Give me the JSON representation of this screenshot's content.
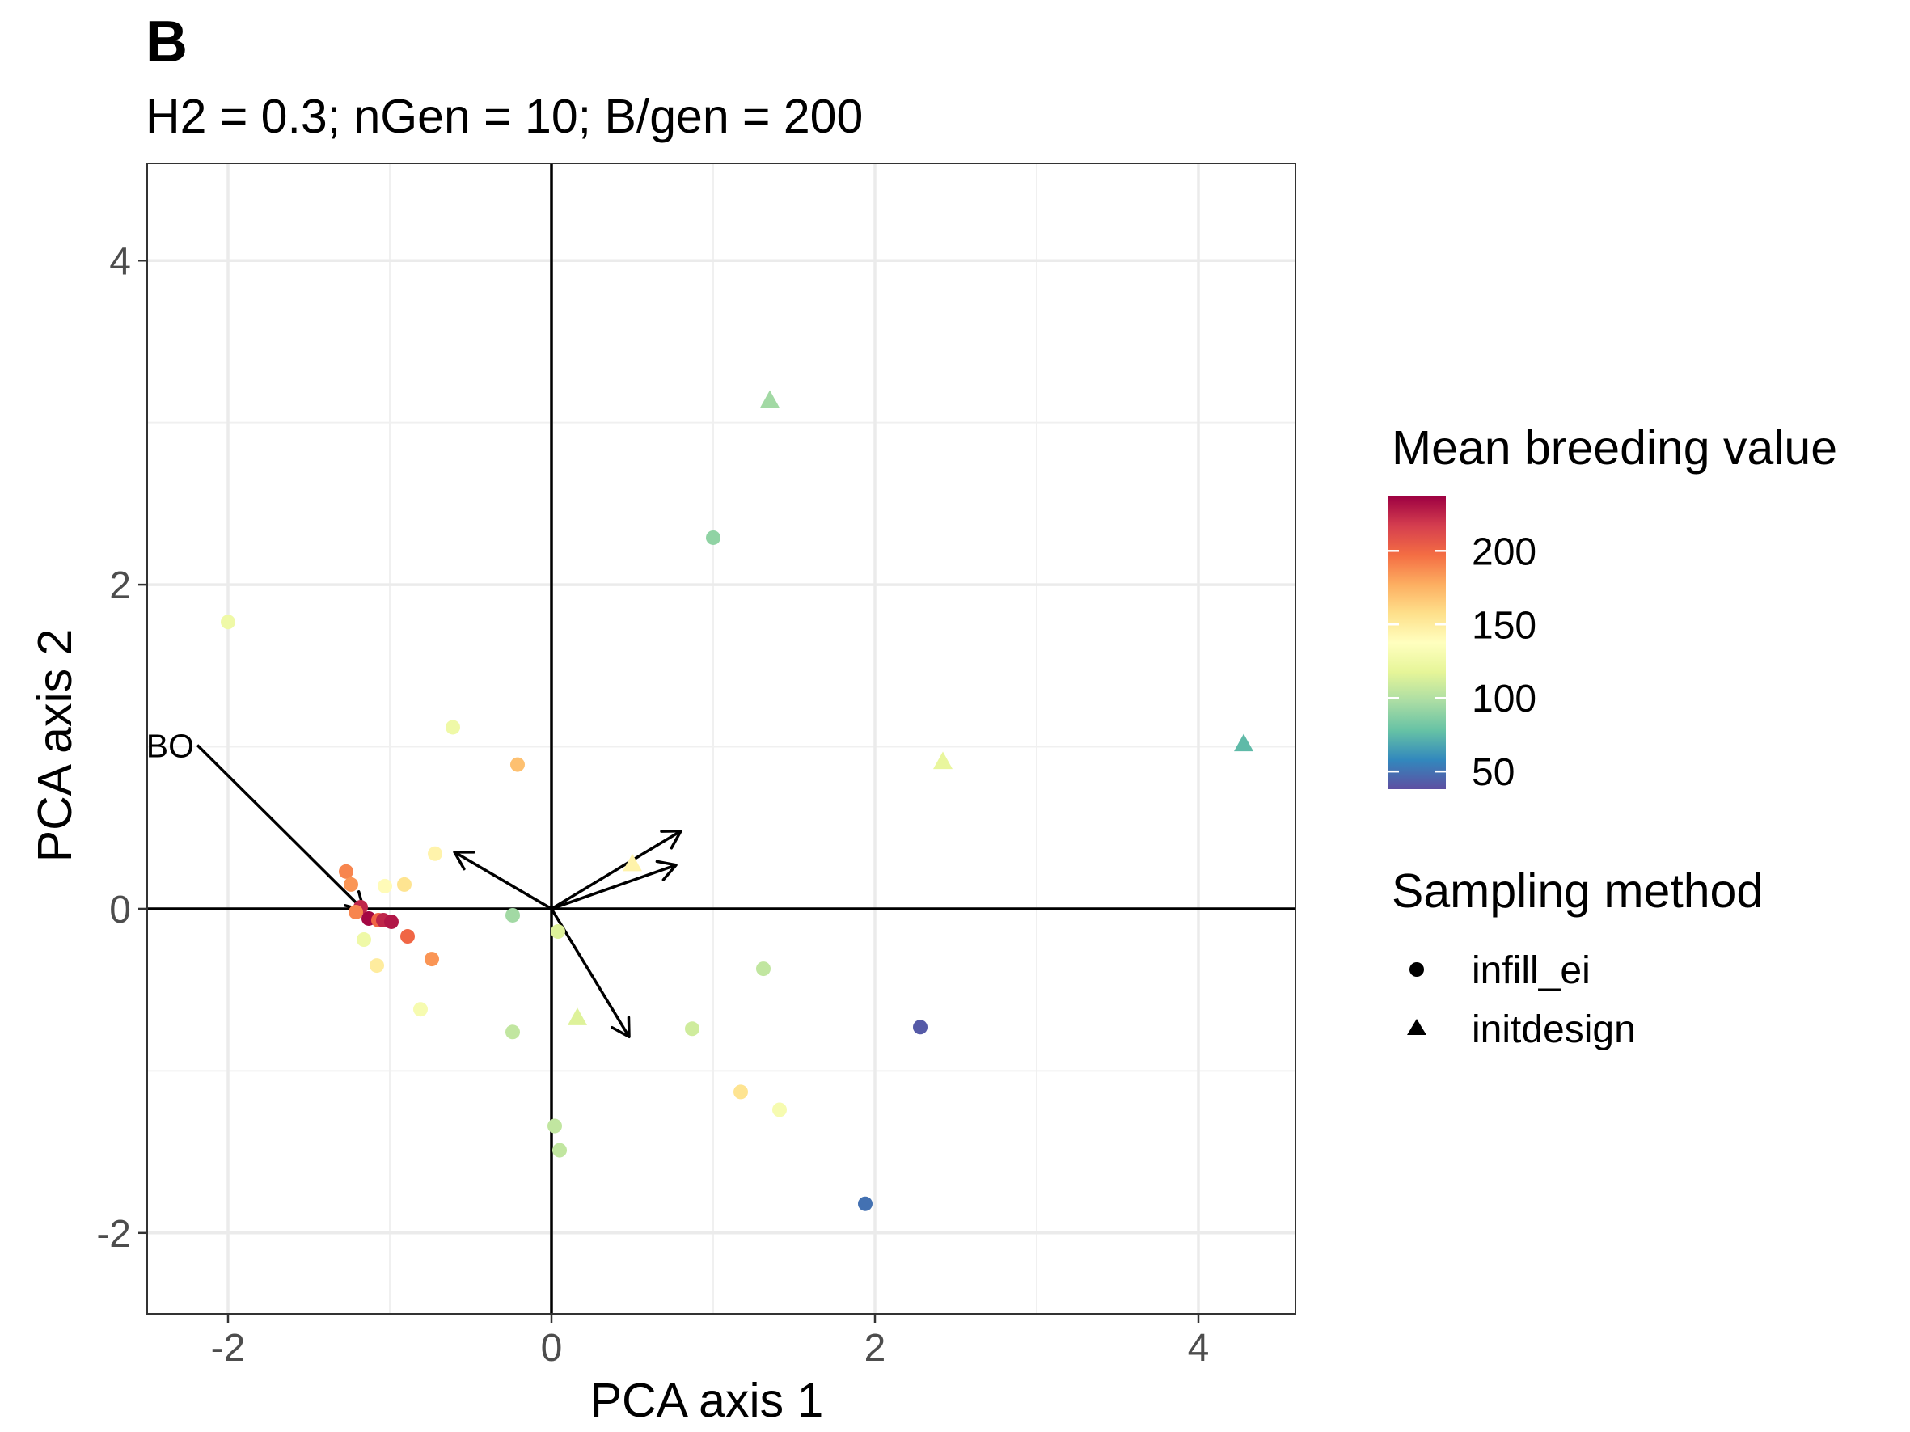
{
  "panel_tag": "B",
  "chart_data": {
    "type": "scatter",
    "title": "",
    "subtitle": "H2 = 0.3; nGen = 10; B/gen = 200",
    "xlabel": "PCA axis 1",
    "ylabel": "PCA axis 2",
    "xlim": [
      -2.5,
      4.6
    ],
    "ylim": [
      -2.5,
      4.6
    ],
    "x_ticks": [
      -2,
      0,
      2,
      4
    ],
    "y_ticks": [
      -2,
      0,
      2,
      4
    ],
    "x_tick_labels": [
      "-2",
      "0",
      "2",
      "4"
    ],
    "y_tick_labels": [
      "-2",
      "0",
      "2",
      "4"
    ],
    "grid": true,
    "zero_lines": true,
    "color_scale": {
      "title": "Mean breeding value",
      "palette": "Spectral",
      "min": 38,
      "max": 237,
      "ticks": [
        50,
        100,
        150,
        200
      ],
      "tick_labels": [
        "50",
        "100",
        "150",
        "200"
      ],
      "stops": [
        "#5E4FA2",
        "#3288BD",
        "#66C2A5",
        "#ABDDA4",
        "#E6F598",
        "#FFFFBF",
        "#FEE08B",
        "#FDAE61",
        "#F46D43",
        "#D53E4F",
        "#9E0142"
      ]
    },
    "shape_legend": {
      "title": "Sampling method",
      "items": [
        {
          "label": "infill_ei",
          "shape": "circle"
        },
        {
          "label": "initdesign",
          "shape": "triangle"
        }
      ]
    },
    "legend_position": "right",
    "points": [
      {
        "x": -2.0,
        "y": 1.77,
        "value": 125,
        "method": "infill_ei"
      },
      {
        "x": -0.61,
        "y": 1.12,
        "value": 125,
        "method": "infill_ei"
      },
      {
        "x": -0.21,
        "y": 0.89,
        "value": 170,
        "method": "infill_ei"
      },
      {
        "x": -0.72,
        "y": 0.34,
        "value": 145,
        "method": "infill_ei"
      },
      {
        "x": -1.27,
        "y": 0.23,
        "value": 190,
        "method": "infill_ei"
      },
      {
        "x": -1.24,
        "y": 0.15,
        "value": 185,
        "method": "infill_ei"
      },
      {
        "x": -1.03,
        "y": 0.14,
        "value": 140,
        "method": "infill_ei"
      },
      {
        "x": -0.91,
        "y": 0.15,
        "value": 155,
        "method": "infill_ei"
      },
      {
        "x": -1.18,
        "y": 0.01,
        "value": 225,
        "method": "infill_ei"
      },
      {
        "x": -1.21,
        "y": -0.02,
        "value": 190,
        "method": "infill_ei"
      },
      {
        "x": -1.13,
        "y": -0.06,
        "value": 235,
        "method": "infill_ei"
      },
      {
        "x": -1.07,
        "y": -0.07,
        "value": 200,
        "method": "infill_ei"
      },
      {
        "x": -1.04,
        "y": -0.07,
        "value": 225,
        "method": "infill_ei"
      },
      {
        "x": -0.99,
        "y": -0.08,
        "value": 230,
        "method": "infill_ei"
      },
      {
        "x": -0.89,
        "y": -0.17,
        "value": 200,
        "method": "infill_ei"
      },
      {
        "x": -1.16,
        "y": -0.19,
        "value": 125,
        "method": "infill_ei"
      },
      {
        "x": -0.74,
        "y": -0.31,
        "value": 185,
        "method": "infill_ei"
      },
      {
        "x": -1.08,
        "y": -0.35,
        "value": 150,
        "method": "infill_ei"
      },
      {
        "x": -0.81,
        "y": -0.62,
        "value": 130,
        "method": "infill_ei"
      },
      {
        "x": -0.24,
        "y": -0.04,
        "value": 95,
        "method": "infill_ei"
      },
      {
        "x": -0.24,
        "y": -0.76,
        "value": 105,
        "method": "infill_ei"
      },
      {
        "x": 0.04,
        "y": -0.14,
        "value": 115,
        "method": "infill_ei"
      },
      {
        "x": 0.02,
        "y": -1.34,
        "value": 105,
        "method": "infill_ei"
      },
      {
        "x": 0.05,
        "y": -1.49,
        "value": 105,
        "method": "infill_ei"
      },
      {
        "x": 0.87,
        "y": -0.74,
        "value": 110,
        "method": "infill_ei"
      },
      {
        "x": 1.31,
        "y": -0.37,
        "value": 105,
        "method": "infill_ei"
      },
      {
        "x": 1.0,
        "y": 2.29,
        "value": 90,
        "method": "infill_ei"
      },
      {
        "x": 1.17,
        "y": -1.13,
        "value": 155,
        "method": "infill_ei"
      },
      {
        "x": 1.41,
        "y": -1.24,
        "value": 130,
        "method": "infill_ei"
      },
      {
        "x": 2.28,
        "y": -0.73,
        "value": 42,
        "method": "infill_ei"
      },
      {
        "x": 1.94,
        "y": -1.82,
        "value": 50,
        "method": "infill_ei"
      },
      {
        "x": 1.35,
        "y": 3.14,
        "value": 95,
        "method": "initdesign"
      },
      {
        "x": 2.42,
        "y": 0.91,
        "value": 120,
        "method": "initdesign"
      },
      {
        "x": 4.28,
        "y": 1.02,
        "value": 75,
        "method": "initdesign"
      },
      {
        "x": 0.5,
        "y": 0.28,
        "value": 145,
        "method": "initdesign"
      },
      {
        "x": 0.16,
        "y": -0.67,
        "value": 115,
        "method": "initdesign"
      }
    ],
    "arrows": [
      {
        "from": [
          0,
          0
        ],
        "to": [
          -2.19,
          1.01
        ],
        "direction": "inward",
        "label": "BO"
      },
      {
        "from": [
          0,
          0
        ],
        "to": [
          -0.6,
          0.35
        ],
        "direction": "outward",
        "label": ""
      },
      {
        "from": [
          0,
          0
        ],
        "to": [
          0.8,
          0.48
        ],
        "direction": "outward",
        "label": ""
      },
      {
        "from": [
          0,
          0
        ],
        "to": [
          0.77,
          0.27
        ],
        "direction": "outward",
        "label": ""
      },
      {
        "from": [
          0,
          0
        ],
        "to": [
          0.48,
          -0.79
        ],
        "direction": "outward",
        "label": ""
      }
    ]
  }
}
